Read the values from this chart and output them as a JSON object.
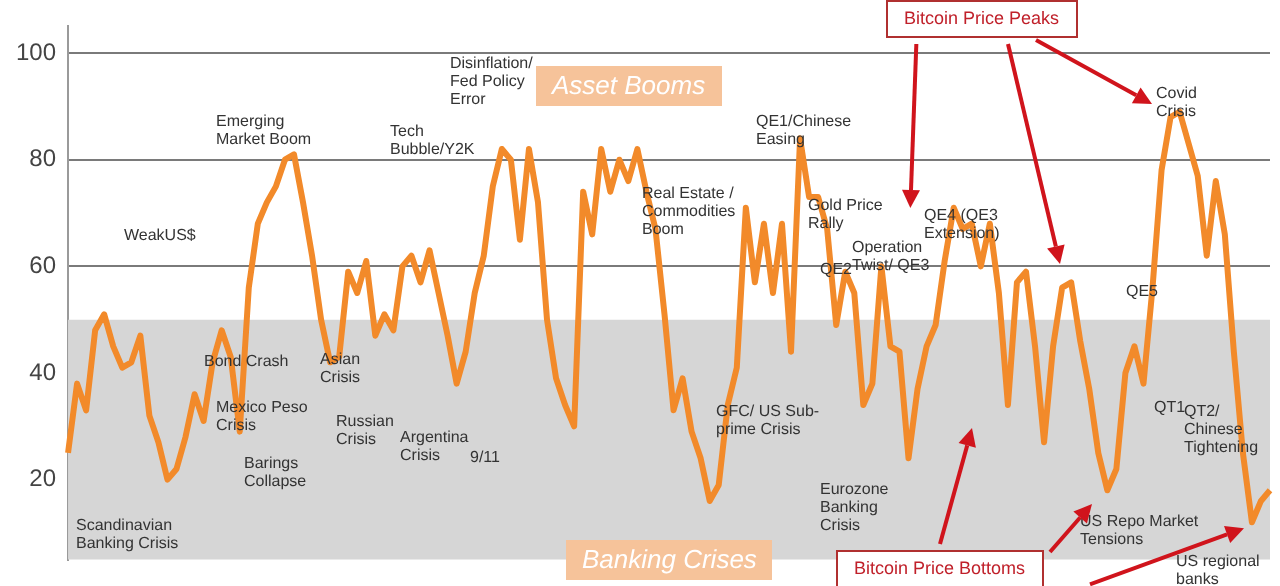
{
  "chart_data": {
    "type": "line",
    "categories": [
      null,
      null,
      null,
      null,
      null,
      null,
      null,
      null,
      null,
      null,
      null,
      null,
      null,
      null,
      null,
      null,
      null,
      null,
      null,
      null,
      null,
      null,
      null,
      null,
      null,
      null,
      null,
      null,
      null,
      null,
      null,
      null,
      null,
      null,
      null,
      null,
      null,
      null,
      null,
      null,
      null,
      null,
      null,
      null,
      null,
      null,
      null,
      null,
      null,
      null,
      null,
      null,
      null,
      null,
      null,
      null,
      null,
      null,
      null,
      null,
      null,
      null,
      null,
      null,
      null,
      null,
      null,
      null,
      null,
      null,
      null,
      null,
      null,
      null,
      null,
      null,
      null,
      null,
      null,
      null,
      null,
      null,
      null,
      null,
      null,
      null,
      null,
      null,
      null,
      null,
      null,
      null,
      null,
      null,
      null,
      null,
      null,
      null,
      null,
      null,
      null,
      null,
      null,
      null,
      null,
      null,
      null,
      null,
      null,
      null,
      null,
      null,
      null,
      null,
      null,
      null,
      null,
      null,
      null,
      null,
      null,
      null,
      null,
      null,
      null,
      null,
      null,
      null,
      null,
      null,
      null,
      null,
      null,
      null
    ],
    "series": [
      {
        "color": "#f28a2a",
        "values": [
          25,
          38,
          33,
          48,
          51,
          45,
          41,
          42,
          47,
          32,
          27,
          20,
          22,
          28,
          36,
          31,
          42,
          48,
          43,
          29,
          56,
          68,
          72,
          75,
          80,
          81,
          72,
          62,
          50,
          42,
          43,
          59,
          55,
          61,
          47,
          51,
          48,
          60,
          62,
          57,
          63,
          55,
          47,
          38,
          44,
          55,
          62,
          75,
          82,
          80,
          65,
          82,
          72,
          50,
          39,
          34,
          30,
          74,
          66,
          82,
          74,
          80,
          76,
          82,
          74,
          67,
          51,
          33,
          39,
          29,
          24,
          16,
          19,
          34,
          41,
          71,
          57,
          68,
          55,
          68,
          44,
          84,
          73,
          73,
          67,
          49,
          59,
          55,
          34,
          38,
          60,
          45,
          44,
          24,
          37,
          45,
          49,
          61,
          71,
          67,
          68,
          60,
          68,
          55,
          34,
          57,
          59,
          45,
          27,
          45,
          56,
          57,
          46,
          37,
          25,
          18,
          22,
          40,
          45,
          38,
          56,
          78,
          88,
          89,
          83,
          77,
          62,
          76,
          66,
          44,
          25,
          12,
          16,
          18
        ]
      }
    ],
    "ylim": [
      5,
      105
    ],
    "yticks": [
      20,
      40,
      60,
      80,
      100
    ],
    "grid": "y",
    "legend": false,
    "marker": "none",
    "line_style": "solid",
    "tick_labels": "y",
    "bands": [
      {
        "axis": "y",
        "from": 5,
        "to": 50,
        "color": "#d6d6d6"
      }
    ],
    "annotations": [
      "Scandinavian Banking Crisis",
      "WeakUS$",
      "Emerging Market Boom",
      "Bond Crash",
      "Mexico Peso Crisis",
      "Barings Collapse",
      "Asian Crisis",
      "Russian Crisis",
      "Argentina Crisis",
      "9/11",
      "Tech Bubble/Y2K",
      "Disinflation/ Fed Policy Error",
      "Asset Booms",
      "Real Estate / Commodities Boom",
      "QE1/Chinese Easing",
      "Gold Price Rally",
      "QE2",
      "GFC/ US Sub-prime Crisis",
      "Eurozone Banking Crisis",
      "Banking Crises",
      "Operation Twist/ QE3",
      "QE4 (QE3 Extension)",
      "Bitcoin Price Peaks",
      "Covid Crisis",
      "QE5",
      "QT1",
      "QT2/ Chinese Tightening",
      "US Repo Market Tensions",
      "US regional banks",
      "Bitcoin Price Bottoms"
    ]
  }
}
